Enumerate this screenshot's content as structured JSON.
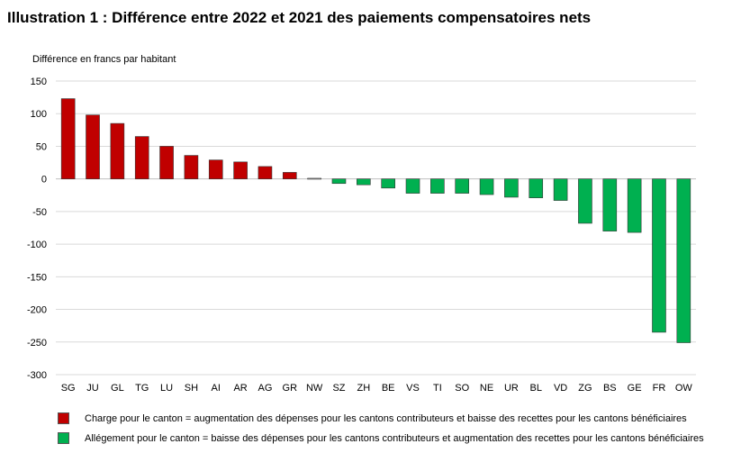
{
  "title": "Illustration 1 : Différence entre 2022 et 2021 des paiements compensatoires nets",
  "colors": {
    "positive": "#c00000",
    "negative": "#00b050",
    "grid": "#d9d9d9",
    "axis": "#bfbfbf"
  },
  "chart_data": {
    "type": "bar",
    "title": "Illustration 1 : Différence entre 2022 et 2021 des paiements compensatoires nets",
    "ylabel": "Différence en francs par habitant",
    "xlabel": "",
    "ylim": [
      -300,
      150
    ],
    "yticks": [
      150,
      100,
      50,
      0,
      -50,
      -100,
      -150,
      -200,
      -250,
      -300
    ],
    "grid": true,
    "categories": [
      "SG",
      "JU",
      "GL",
      "TG",
      "LU",
      "SH",
      "AI",
      "AR",
      "AG",
      "GR",
      "NW",
      "SZ",
      "ZH",
      "BE",
      "VS",
      "TI",
      "SO",
      "NE",
      "UR",
      "BL",
      "VD",
      "ZG",
      "BS",
      "GE",
      "FR",
      "OW"
    ],
    "values": [
      123,
      98,
      85,
      65,
      50,
      36,
      29,
      26,
      19,
      10,
      1,
      -7,
      -9,
      -14,
      -22,
      -22,
      -22,
      -24,
      -28,
      -29,
      -33,
      -68,
      -80,
      -82,
      -235,
      -251
    ],
    "legend": [
      {
        "label": "Charge pour le canton = augmentation des dépenses pour les cantons contributeurs et baisse des recettes pour les cantons bénéficiaires",
        "color": "#c00000"
      },
      {
        "label": "Allégement pour le canton = baisse des dépenses pour les cantons contributeurs et augmentation des recettes pour les cantons bénéficiaires",
        "color": "#00b050"
      }
    ],
    "legend_position": "bottom"
  }
}
